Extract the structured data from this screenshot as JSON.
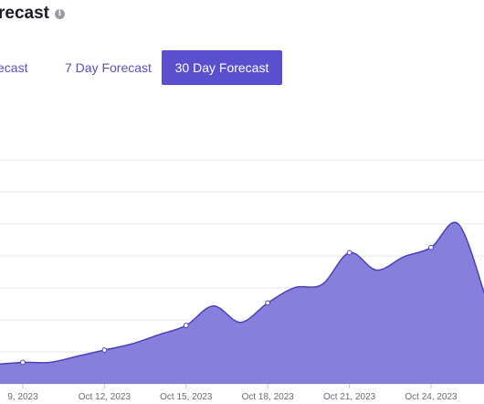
{
  "header": {
    "title": "recast",
    "info_icon": "info-icon"
  },
  "tabs": [
    {
      "label": "ecast",
      "active": false
    },
    {
      "label": "7 Day Forecast",
      "active": false
    },
    {
      "label": "30 Day Forecast",
      "active": true
    }
  ],
  "colors": {
    "accent": "#5a4fcf",
    "area_fill": "#8680dc",
    "area_stroke": "#4b40b8",
    "grid": "#e6e6ea"
  },
  "chart_data": {
    "type": "area",
    "x_tick_labels": [
      "9, 2023",
      "Oct 12, 2023",
      "Oct 15, 2023",
      "Oct 18, 2023",
      "Oct 21, 2023",
      "Oct 24, 2023"
    ],
    "x": [
      "Oct 8",
      "Oct 9",
      "Oct 10",
      "Oct 11",
      "Oct 12",
      "Oct 13",
      "Oct 14",
      "Oct 15",
      "Oct 16",
      "Oct 17",
      "Oct 18",
      "Oct 19",
      "Oct 20",
      "Oct 21",
      "Oct 22",
      "Oct 23",
      "Oct 24",
      "Oct 25",
      "Oct 26"
    ],
    "values": [
      1.9,
      2.1,
      2.1,
      2.7,
      3.3,
      3.9,
      4.8,
      5.7,
      7.6,
      6.0,
      7.9,
      9.4,
      9.7,
      12.8,
      11.1,
      12.4,
      13.3,
      15.6,
      8.5
    ],
    "marked_points": [
      1,
      4,
      7,
      10,
      13,
      16
    ],
    "grid": true,
    "legend": "none"
  }
}
